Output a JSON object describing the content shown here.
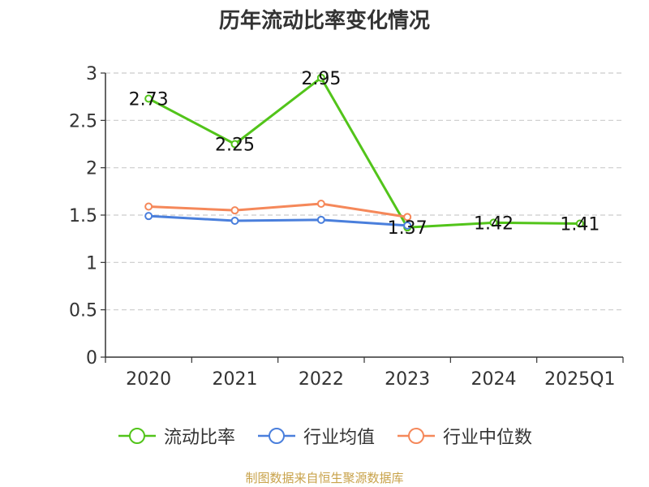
{
  "chart_data": {
    "type": "line",
    "title": "历年流动比率变化情况",
    "categories": [
      "2020",
      "2021",
      "2022",
      "2023",
      "2024",
      "2025Q1"
    ],
    "ylim": [
      0,
      3
    ],
    "yticks": [
      "0",
      "0.5",
      "1",
      "1.5",
      "2",
      "2.5",
      "3"
    ],
    "grid": true,
    "legend_position": "bottom",
    "series": [
      {
        "name": "流动比率",
        "color": "#52c41a",
        "values": [
          2.73,
          2.25,
          2.95,
          1.37,
          1.42,
          1.41
        ],
        "labels": [
          "2.73",
          "2.25",
          "2.95",
          "1.37",
          "1.42",
          "1.41"
        ]
      },
      {
        "name": "行业均值",
        "color": "#4a7fdc",
        "values": [
          1.49,
          1.44,
          1.45,
          1.39,
          null,
          null
        ]
      },
      {
        "name": "行业中位数",
        "color": "#f5885a",
        "values": [
          1.59,
          1.55,
          1.62,
          1.48,
          null,
          null
        ]
      }
    ],
    "source": "制图数据来自恒生聚源数据库"
  }
}
